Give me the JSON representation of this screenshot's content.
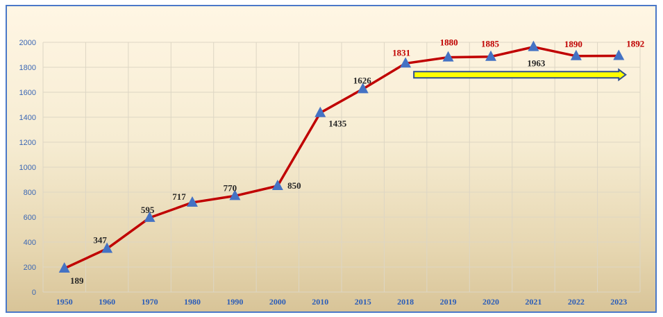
{
  "colors": {
    "line": "#c00000",
    "marker": "#4472c4",
    "label_dark": "#262626",
    "label_red": "#c00000",
    "grid": "#ddd6c4",
    "arrow_fill": "#ffff00",
    "arrow_stroke": "#2f4f8f"
  },
  "chart_data": {
    "type": "line",
    "title": "",
    "xlabel": "",
    "ylabel": "",
    "categories": [
      "1950",
      "1960",
      "1970",
      "1980",
      "1990",
      "2000",
      "2010",
      "2015",
      "2018",
      "2019",
      "2020",
      "2021",
      "2022",
      "2023"
    ],
    "series": [
      {
        "values": [
          189,
          347,
          595,
          717,
          770,
          850,
          1435,
          1626,
          1831,
          1880,
          1885,
          1963,
          1890,
          1892
        ]
      }
    ],
    "data_labels": [
      "189",
      "347",
      "595",
      "717",
      "770",
      "850",
      "1435",
      "1626",
      "1831",
      "1880",
      "1885",
      "1963",
      "1890",
      "1892"
    ],
    "highlighted_labels": [
      "1831",
      "1880",
      "1885",
      "1890",
      "1892"
    ],
    "ylim": [
      0,
      2000
    ],
    "yticks": [
      0,
      200,
      400,
      600,
      800,
      1000,
      1200,
      1400,
      1600,
      1800,
      2000
    ],
    "grid": true,
    "marker": "triangle",
    "annotation": {
      "shape": "arrow",
      "from": "2018",
      "to": "2023",
      "y": 1740
    }
  }
}
